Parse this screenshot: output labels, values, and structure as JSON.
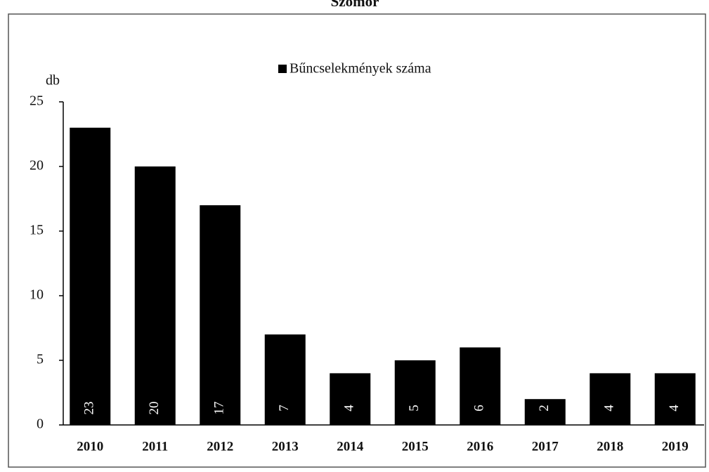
{
  "chart_data": {
    "type": "bar",
    "title": "Szomor",
    "legend": "Bűncselekmények száma",
    "y_label": "db",
    "categories": [
      "2010",
      "2011",
      "2012",
      "2013",
      "2014",
      "2015",
      "2016",
      "2017",
      "2018",
      "2019"
    ],
    "values": [
      23,
      20,
      17,
      7,
      4,
      5,
      6,
      2,
      4,
      4
    ],
    "color": "#000000",
    "ylim": [
      0,
      25
    ],
    "yticks": [
      0,
      5,
      10,
      15,
      20,
      25
    ],
    "grid": false
  }
}
